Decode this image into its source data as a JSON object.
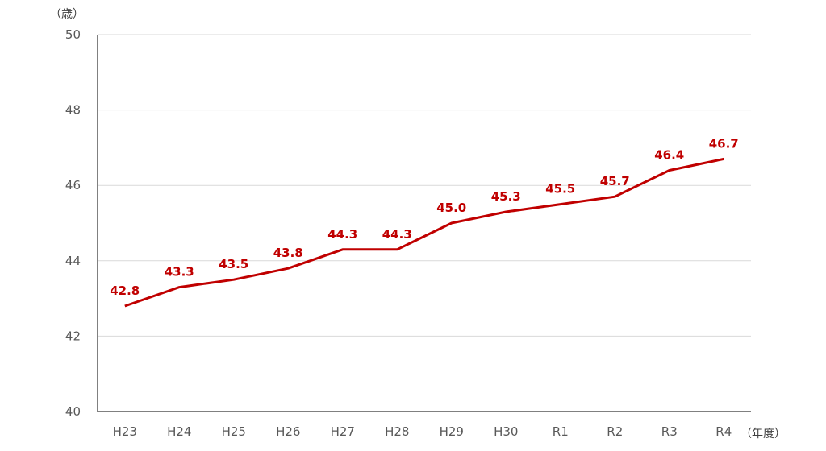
{
  "chart_data": {
    "type": "line",
    "title": "",
    "y_unit_label": "（歳）",
    "x_unit_label": "（年度）",
    "categories": [
      "H23",
      "H24",
      "H25",
      "H26",
      "H27",
      "H28",
      "H29",
      "H30",
      "R1",
      "R2",
      "R3",
      "R4"
    ],
    "series": [
      {
        "values": [
          42.8,
          43.3,
          43.5,
          43.8,
          44.3,
          44.3,
          45.0,
          45.3,
          45.5,
          45.7,
          46.4,
          46.7
        ],
        "labels": [
          "42.8",
          "43.3",
          "43.5",
          "43.8",
          "44.3",
          "44.3",
          "45.0",
          "45.3",
          "45.5",
          "45.7",
          "46.4",
          "46.7"
        ],
        "color": "#c00000"
      }
    ],
    "ylim": [
      40,
      50
    ],
    "yticks": [
      40,
      42,
      44,
      46,
      48,
      50
    ],
    "grid": true,
    "legend": "none"
  }
}
